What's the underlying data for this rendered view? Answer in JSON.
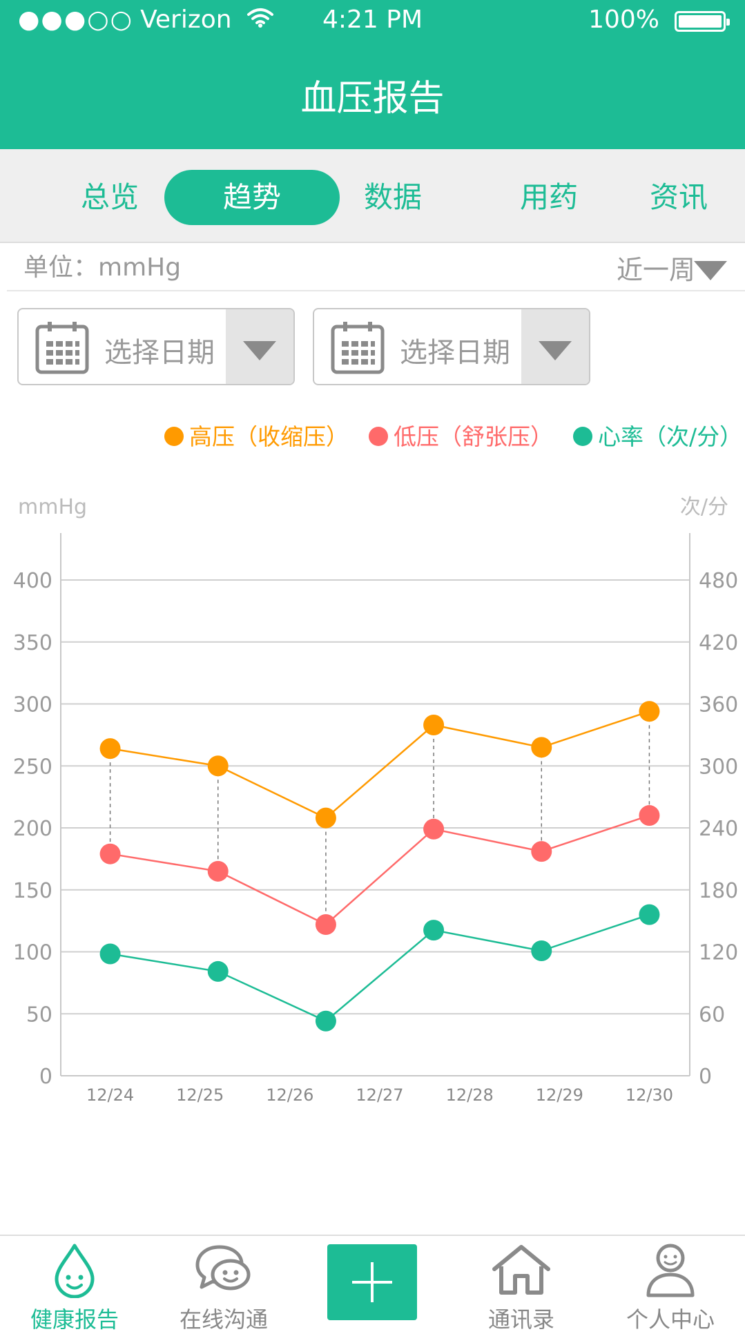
{
  "status_bar": {
    "signal": "●●●○○",
    "carrier": "Verizon",
    "time": "4:21 PM",
    "battery": "100%"
  },
  "header": {
    "title": "血压报告"
  },
  "tabs": [
    {
      "label": "总览",
      "active": false
    },
    {
      "label": "趋势",
      "active": true
    },
    {
      "label": "数据",
      "active": false
    },
    {
      "label": "用药",
      "active": false
    },
    {
      "label": "资讯",
      "active": false
    }
  ],
  "unit_label": "单位：mmHg",
  "range_selector": "近一周",
  "date_pickers": [
    {
      "placeholder": "选择日期"
    },
    {
      "placeholder": "选择日期"
    }
  ],
  "colors": {
    "accent": "#1dbc95",
    "systolic": "#ff9a00",
    "diastolic": "#ff6a6a",
    "heart_rate": "#1dbc95"
  },
  "chart_data": {
    "type": "line",
    "x": [
      "12/24",
      "12/25",
      "12/26",
      "12/27",
      "12/28",
      "12/29",
      "12/30"
    ],
    "left_axis": {
      "label": "mmHg",
      "ylim": [
        0,
        400
      ],
      "ticks": [
        0,
        50,
        100,
        150,
        200,
        250,
        300,
        350,
        400
      ]
    },
    "right_axis": {
      "label": "次/分",
      "ylim": [
        0,
        480
      ],
      "ticks": [
        0,
        60,
        120,
        180,
        240,
        300,
        360,
        420,
        480
      ]
    },
    "series": [
      {
        "name": "高压（收缩压）",
        "axis": "left",
        "x": [
          0.0,
          1.2,
          2.4,
          3.6,
          4.8,
          6.0
        ],
        "values": [
          264,
          250,
          208,
          283,
          265,
          294
        ]
      },
      {
        "name": "低压（舒张压）",
        "axis": "left",
        "x": [
          0.0,
          1.2,
          2.4,
          3.6,
          4.8,
          6.0
        ],
        "values": [
          179,
          165,
          122,
          199,
          181,
          210
        ]
      },
      {
        "name": "心率（次/分）",
        "axis": "right",
        "x": [
          0.0,
          1.2,
          2.4,
          3.6,
          4.8,
          6.0
        ],
        "values": [
          118,
          101,
          53,
          141,
          121,
          156
        ]
      }
    ],
    "grid": true,
    "legend_position": "top-right"
  },
  "bottom_nav": [
    {
      "label": "健康报告",
      "icon": "drop-face-icon",
      "active": true
    },
    {
      "label": "在线沟通",
      "icon": "chat-bubbles-icon",
      "active": false
    },
    {
      "label": "",
      "icon": "plus-icon",
      "active": false
    },
    {
      "label": "通讯录",
      "icon": "house-icon",
      "active": false
    },
    {
      "label": "个人中心",
      "icon": "person-icon",
      "active": false
    }
  ]
}
